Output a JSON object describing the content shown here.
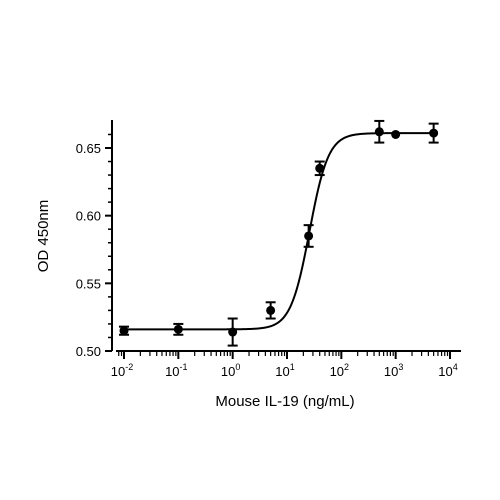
{
  "chart_data": {
    "type": "scatter",
    "title": "",
    "xlabel": "Mouse IL-19 (ng/mL)",
    "ylabel": "OD 450nm",
    "x_scale": "log",
    "xlim": [
      0.008,
      10000
    ],
    "ylim": [
      0.5,
      0.67
    ],
    "y_ticks": [
      "0.50",
      "0.55",
      "0.60",
      "0.65"
    ],
    "x_ticks": [
      {
        "base": "10",
        "exp": "-2"
      },
      {
        "base": "10",
        "exp": "-1"
      },
      {
        "base": "10",
        "exp": "0"
      },
      {
        "base": "10",
        "exp": "1"
      },
      {
        "base": "10",
        "exp": "2"
      },
      {
        "base": "10",
        "exp": "3"
      },
      {
        "base": "10",
        "exp": "4"
      }
    ],
    "grid": false,
    "legend": "none",
    "points": [
      {
        "x": 0.01,
        "y": 0.515,
        "err": 0.003
      },
      {
        "x": 0.1,
        "y": 0.516,
        "err": 0.004
      },
      {
        "x": 1,
        "y": 0.514,
        "err": 0.01
      },
      {
        "x": 5,
        "y": 0.53,
        "err": 0.006
      },
      {
        "x": 25,
        "y": 0.585,
        "err": 0.008
      },
      {
        "x": 40,
        "y": 0.635,
        "err": 0.005
      },
      {
        "x": 500,
        "y": 0.662,
        "err": 0.008
      },
      {
        "x": 1000,
        "y": 0.66,
        "err": 0.001
      },
      {
        "x": 5000,
        "y": 0.661,
        "err": 0.007
      }
    ],
    "fit": {
      "model": "4PL",
      "bottom": 0.516,
      "top": 0.661,
      "ec50": 26,
      "hill": 2.5
    },
    "color": "#000000"
  }
}
